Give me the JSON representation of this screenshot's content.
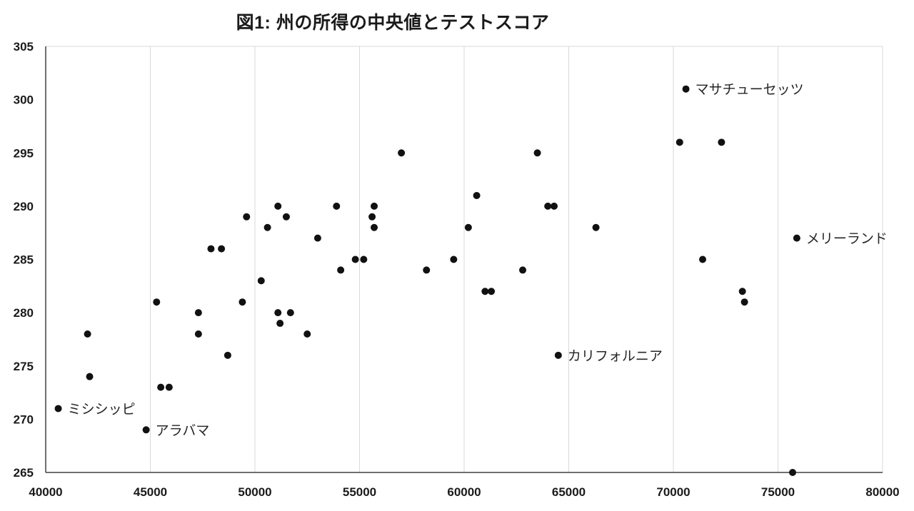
{
  "title": "図1: 州の所得の中央値とテストスコア",
  "chart_data": {
    "type": "scatter",
    "title": "図1: 州の所得の中央値とテストスコア",
    "xlabel": "",
    "ylabel": "",
    "xlim": [
      40000,
      80000
    ],
    "ylim": [
      265,
      305
    ],
    "x_ticks": [
      40000,
      45000,
      50000,
      55000,
      60000,
      65000,
      70000,
      75000,
      80000
    ],
    "y_ticks": [
      265,
      270,
      275,
      280,
      285,
      290,
      295,
      300,
      305
    ],
    "grid": "vertical",
    "legend": "none",
    "colors": {
      "point": "#111111",
      "grid": "#d9d9d9",
      "axis": "#404040",
      "text": "#1a1a1a"
    },
    "points": [
      {
        "x": 40600,
        "y": 271,
        "label": "ミシシッピ"
      },
      {
        "x": 42000,
        "y": 278
      },
      {
        "x": 42100,
        "y": 274
      },
      {
        "x": 44800,
        "y": 269,
        "label": "アラバマ"
      },
      {
        "x": 45300,
        "y": 281
      },
      {
        "x": 45500,
        "y": 273
      },
      {
        "x": 45900,
        "y": 273
      },
      {
        "x": 47300,
        "y": 280
      },
      {
        "x": 47300,
        "y": 278
      },
      {
        "x": 47900,
        "y": 286
      },
      {
        "x": 48400,
        "y": 286
      },
      {
        "x": 48700,
        "y": 276
      },
      {
        "x": 49400,
        "y": 281
      },
      {
        "x": 49600,
        "y": 289
      },
      {
        "x": 50300,
        "y": 283
      },
      {
        "x": 50600,
        "y": 288
      },
      {
        "x": 51100,
        "y": 290
      },
      {
        "x": 51100,
        "y": 280
      },
      {
        "x": 51200,
        "y": 279
      },
      {
        "x": 51500,
        "y": 289
      },
      {
        "x": 51700,
        "y": 280
      },
      {
        "x": 52500,
        "y": 278
      },
      {
        "x": 53000,
        "y": 287
      },
      {
        "x": 53900,
        "y": 290
      },
      {
        "x": 54100,
        "y": 284
      },
      {
        "x": 54800,
        "y": 285
      },
      {
        "x": 55200,
        "y": 285
      },
      {
        "x": 55600,
        "y": 289
      },
      {
        "x": 55700,
        "y": 290
      },
      {
        "x": 55700,
        "y": 288
      },
      {
        "x": 57000,
        "y": 295
      },
      {
        "x": 58200,
        "y": 284
      },
      {
        "x": 59500,
        "y": 285
      },
      {
        "x": 60200,
        "y": 288
      },
      {
        "x": 60600,
        "y": 291
      },
      {
        "x": 61000,
        "y": 282
      },
      {
        "x": 61300,
        "y": 282
      },
      {
        "x": 62800,
        "y": 284
      },
      {
        "x": 63500,
        "y": 295
      },
      {
        "x": 64000,
        "y": 290
      },
      {
        "x": 64300,
        "y": 290
      },
      {
        "x": 64500,
        "y": 276,
        "label": "カリフォルニア"
      },
      {
        "x": 66300,
        "y": 288
      },
      {
        "x": 70300,
        "y": 296
      },
      {
        "x": 70600,
        "y": 301,
        "label": "マサチューセッツ"
      },
      {
        "x": 71400,
        "y": 285
      },
      {
        "x": 72300,
        "y": 296
      },
      {
        "x": 73300,
        "y": 282
      },
      {
        "x": 73400,
        "y": 281
      },
      {
        "x": 75700,
        "y": 265
      },
      {
        "x": 75900,
        "y": 287,
        "label": "メリーランド"
      }
    ]
  }
}
